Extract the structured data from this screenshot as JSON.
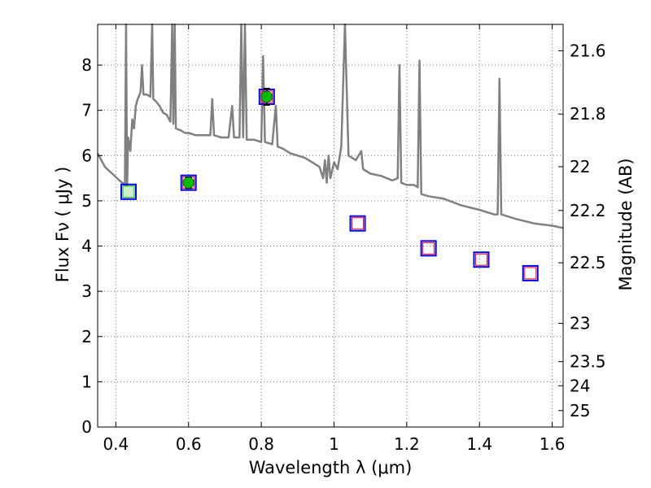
{
  "chart_data": {
    "type": "scatter",
    "xlabel": "Wavelength  λ (μm)",
    "ylabel": "Flux  Fν  ( μJy )",
    "y2label": "Magnitude (AB)",
    "xlim": [
      0.35,
      1.63
    ],
    "ylim": [
      0,
      8.9
    ],
    "x_ticks": [
      0.4,
      0.6,
      0.8,
      1.0,
      1.2,
      1.4,
      1.6
    ],
    "x_tick_labels": [
      "0.4",
      "0.6",
      "0.8",
      "1",
      "1.2",
      "1.4",
      "1.6"
    ],
    "y_ticks": [
      0,
      1,
      2,
      3,
      4,
      5,
      6,
      7,
      8
    ],
    "y_tick_labels": [
      "0",
      "1",
      "2",
      "3",
      "4",
      "5",
      "6",
      "7",
      "8"
    ],
    "mag_ticks": [
      21.6,
      21.8,
      22,
      22.2,
      22.5,
      23,
      23.5,
      24,
      25
    ],
    "mag_tick_labels": [
      "21.6",
      "21.8",
      "22",
      "22.2",
      "22.5",
      "23",
      "23.5",
      "24",
      "25"
    ],
    "grid": true,
    "colors": {
      "sed": "#808080",
      "observed": "#00bb00",
      "model_box": "#0000ff",
      "model_inner": "#ff0000",
      "model_fill_green": "#cceecc"
    },
    "series": [
      {
        "type": "line",
        "points": [
          [
            0.35,
            6.05
          ],
          [
            0.37,
            5.75
          ],
          [
            0.39,
            5.6
          ],
          [
            0.41,
            5.45
          ],
          [
            0.425,
            5.35
          ],
          [
            0.428,
            8.9
          ],
          [
            0.431,
            5.3
          ],
          [
            0.434,
            6.4
          ],
          [
            0.44,
            6.1
          ],
          [
            0.445,
            6.8
          ],
          [
            0.45,
            6.6
          ],
          [
            0.455,
            7.1
          ],
          [
            0.46,
            7.25
          ],
          [
            0.468,
            7.4
          ],
          [
            0.472,
            8.0
          ],
          [
            0.476,
            7.35
          ],
          [
            0.485,
            7.35
          ],
          [
            0.495,
            7.3
          ],
          [
            0.5,
            8.9
          ],
          [
            0.503,
            7.25
          ],
          [
            0.51,
            7.2
          ],
          [
            0.52,
            7.1
          ],
          [
            0.53,
            6.95
          ],
          [
            0.54,
            6.9
          ],
          [
            0.55,
            6.75
          ],
          [
            0.555,
            8.9
          ],
          [
            0.558,
            6.7
          ],
          [
            0.562,
            8.9
          ],
          [
            0.565,
            6.6
          ],
          [
            0.58,
            6.55
          ],
          [
            0.59,
            6.5
          ],
          [
            0.6,
            6.5
          ],
          [
            0.62,
            6.45
          ],
          [
            0.64,
            6.45
          ],
          [
            0.66,
            6.45
          ],
          [
            0.665,
            7.25
          ],
          [
            0.67,
            6.45
          ],
          [
            0.69,
            6.4
          ],
          [
            0.71,
            6.4
          ],
          [
            0.72,
            7.1
          ],
          [
            0.725,
            6.4
          ],
          [
            0.74,
            6.4
          ],
          [
            0.745,
            8.9
          ],
          [
            0.75,
            6.4
          ],
          [
            0.755,
            8.9
          ],
          [
            0.76,
            6.35
          ],
          [
            0.78,
            6.35
          ],
          [
            0.8,
            6.3
          ],
          [
            0.805,
            8.2
          ],
          [
            0.81,
            6.3
          ],
          [
            0.83,
            6.25
          ],
          [
            0.84,
            7.1
          ],
          [
            0.845,
            6.2
          ],
          [
            0.86,
            6.15
          ],
          [
            0.88,
            6.05
          ],
          [
            0.9,
            6.0
          ],
          [
            0.92,
            5.95
          ],
          [
            0.94,
            5.85
          ],
          [
            0.96,
            5.75
          ],
          [
            0.97,
            5.5
          ],
          [
            0.975,
            5.9
          ],
          [
            0.98,
            5.4
          ],
          [
            0.985,
            6.0
          ],
          [
            0.99,
            5.5
          ],
          [
            1.0,
            5.85
          ],
          [
            1.01,
            5.7
          ],
          [
            1.02,
            6.2
          ],
          [
            1.03,
            8.9
          ],
          [
            1.04,
            6.0
          ],
          [
            1.06,
            5.9
          ],
          [
            1.075,
            6.1
          ],
          [
            1.08,
            5.7
          ],
          [
            1.1,
            5.6
          ],
          [
            1.13,
            5.55
          ],
          [
            1.16,
            5.45
          ],
          [
            1.175,
            5.5
          ],
          [
            1.18,
            8.0
          ],
          [
            1.185,
            5.4
          ],
          [
            1.2,
            5.35
          ],
          [
            1.22,
            5.35
          ],
          [
            1.23,
            5.3
          ],
          [
            1.235,
            8.1
          ],
          [
            1.24,
            5.15
          ],
          [
            1.26,
            5.1
          ],
          [
            1.3,
            5.05
          ],
          [
            1.35,
            4.9
          ],
          [
            1.4,
            4.8
          ],
          [
            1.44,
            4.7
          ],
          [
            1.45,
            4.7
          ],
          [
            1.455,
            7.7
          ],
          [
            1.46,
            4.7
          ],
          [
            1.5,
            4.6
          ],
          [
            1.55,
            4.5
          ],
          [
            1.6,
            4.45
          ],
          [
            1.63,
            4.4
          ]
        ]
      },
      {
        "type": "scatter",
        "points": [
          [
            0.435,
            5.2
          ],
          [
            0.6,
            5.4
          ],
          [
            0.815,
            7.3
          ],
          [
            1.065,
            4.5
          ],
          [
            1.26,
            3.95
          ],
          [
            1.405,
            3.7
          ],
          [
            1.54,
            3.4
          ]
        ]
      },
      {
        "type": "scatter",
        "points": [
          [
            0.6,
            5.4,
            0.12
          ],
          [
            0.815,
            7.3,
            0.18
          ]
        ]
      }
    ]
  }
}
